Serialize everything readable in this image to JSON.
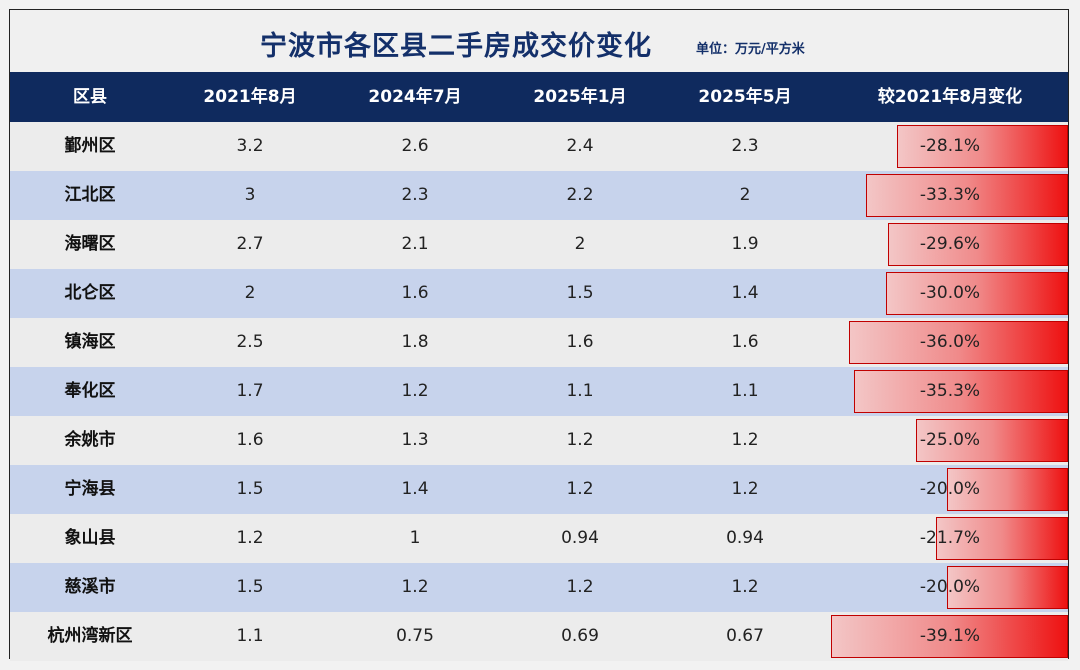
{
  "title": "宁波市各区县二手房成交价变化",
  "unit": "单位：万元/平方米",
  "chart_data": {
    "type": "table",
    "columns": [
      "区县",
      "2021年8月",
      "2024年7月",
      "2025年1月",
      "2025年5月",
      "较2021年8月变化"
    ],
    "rows": [
      {
        "district": "鄞州区",
        "v2021_08": "3.2",
        "v2024_07": "2.6",
        "v2025_01": "2.4",
        "v2025_05": "2.3",
        "change": "-28.1%",
        "change_value": -28.1
      },
      {
        "district": "江北区",
        "v2021_08": "3",
        "v2024_07": "2.3",
        "v2025_01": "2.2",
        "v2025_05": "2",
        "change": "-33.3%",
        "change_value": -33.3
      },
      {
        "district": "海曙区",
        "v2021_08": "2.7",
        "v2024_07": "2.1",
        "v2025_01": "2",
        "v2025_05": "1.9",
        "change": "-29.6%",
        "change_value": -29.6
      },
      {
        "district": "北仑区",
        "v2021_08": "2",
        "v2024_07": "1.6",
        "v2025_01": "1.5",
        "v2025_05": "1.4",
        "change": "-30.0%",
        "change_value": -30.0
      },
      {
        "district": "镇海区",
        "v2021_08": "2.5",
        "v2024_07": "1.8",
        "v2025_01": "1.6",
        "v2025_05": "1.6",
        "change": "-36.0%",
        "change_value": -36.0
      },
      {
        "district": "奉化区",
        "v2021_08": "1.7",
        "v2024_07": "1.2",
        "v2025_01": "1.1",
        "v2025_05": "1.1",
        "change": "-35.3%",
        "change_value": -35.3
      },
      {
        "district": "余姚市",
        "v2021_08": "1.6",
        "v2024_07": "1.3",
        "v2025_01": "1.2",
        "v2025_05": "1.2",
        "change": "-25.0%",
        "change_value": -25.0
      },
      {
        "district": "宁海县",
        "v2021_08": "1.5",
        "v2024_07": "1.4",
        "v2025_01": "1.2",
        "v2025_05": "1.2",
        "change": "-20.0%",
        "change_value": -20.0
      },
      {
        "district": "象山县",
        "v2021_08": "1.2",
        "v2024_07": "1",
        "v2025_01": "0.94",
        "v2025_05": "0.94",
        "change": "-21.7%",
        "change_value": -21.7
      },
      {
        "district": "慈溪市",
        "v2021_08": "1.5",
        "v2024_07": "1.2",
        "v2025_01": "1.2",
        "v2025_05": "1.2",
        "change": "-20.0%",
        "change_value": -20.0
      },
      {
        "district": "杭州湾新区",
        "v2021_08": "1.1",
        "v2024_07": "0.75",
        "v2025_01": "0.69",
        "v2025_05": "0.67",
        "change": "-39.1%",
        "change_value": -39.1
      }
    ],
    "bar_color": "#ee1111"
  }
}
